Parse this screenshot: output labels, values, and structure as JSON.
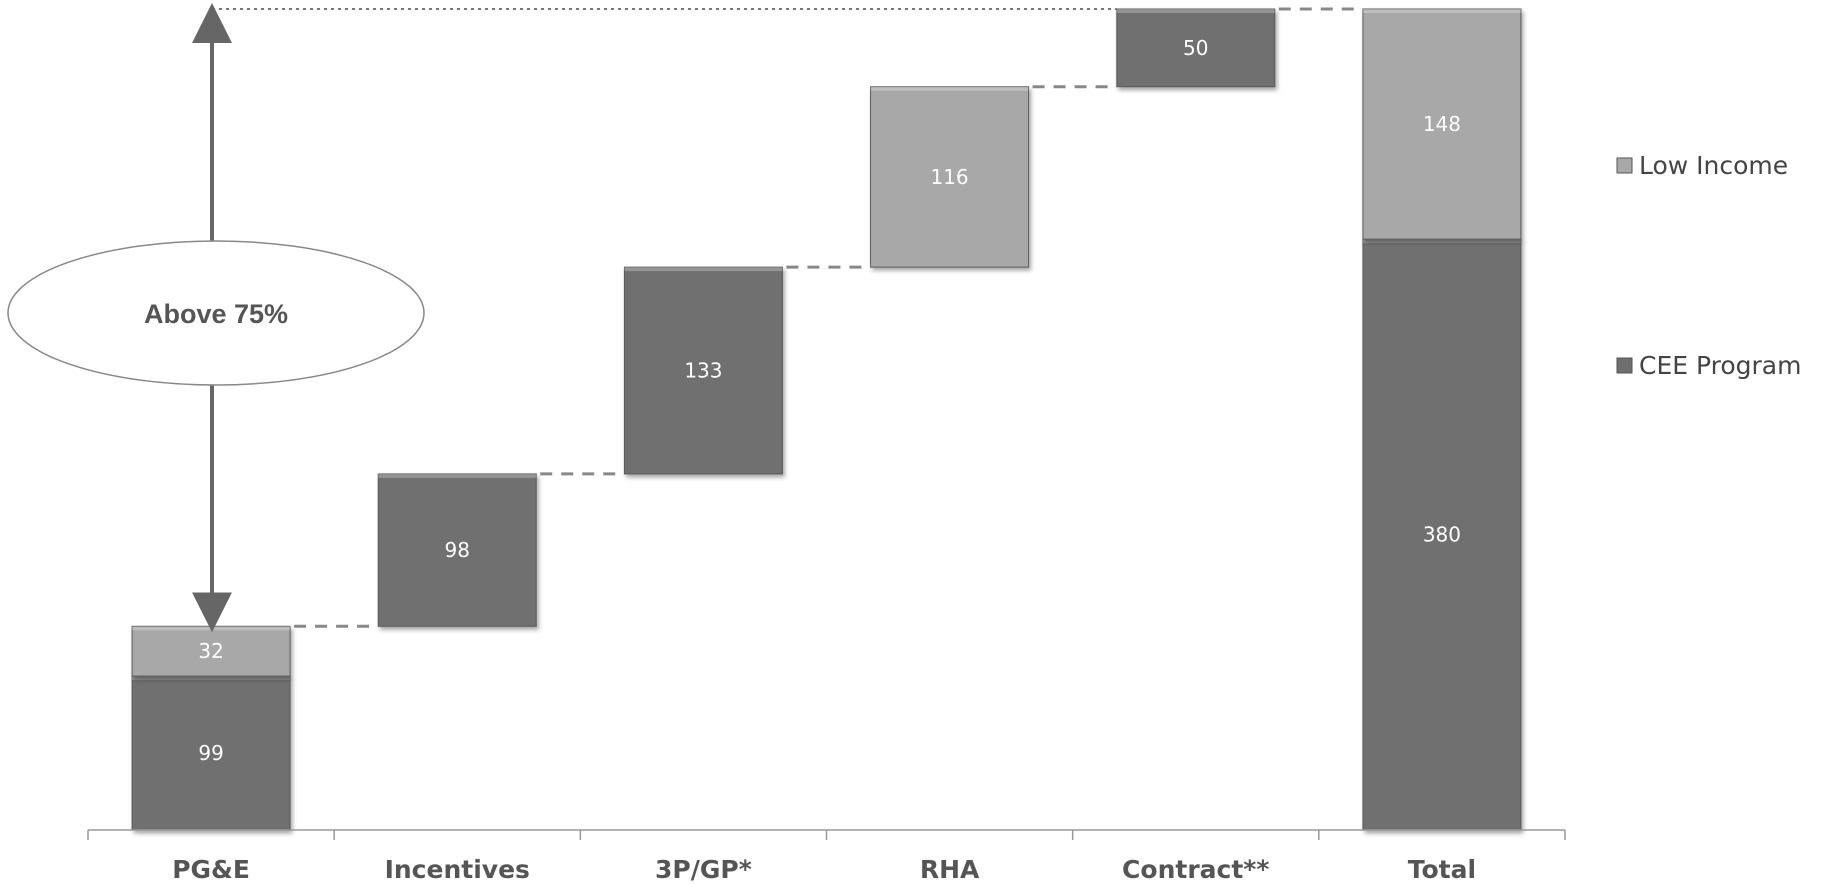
{
  "colors": {
    "cee": "#6f6f6f",
    "low_income": "#a8a8a8",
    "axis": "#999999",
    "connector": "#888888",
    "arrow": "#666666"
  },
  "chart_data": {
    "type": "bar",
    "subtype": "waterfall-stacked",
    "categories": [
      "PG&E",
      "Incentives",
      "3P/GP*",
      "RHA",
      "Contract**",
      "Total"
    ],
    "series": [
      {
        "name": "CEE Program",
        "values": [
          99,
          98,
          133,
          0,
          50,
          380
        ]
      },
      {
        "name": "Low Income",
        "values": [
          32,
          0,
          0,
          116,
          0,
          148
        ]
      }
    ],
    "ylim": [
      0,
      528
    ],
    "legend": {
      "position": "right",
      "order": [
        "Low Income",
        "CEE Program"
      ]
    },
    "grid": false,
    "annotation": {
      "text": "Above 75%",
      "from_value": 131,
      "to_value": 528,
      "category": "PG&E"
    }
  }
}
